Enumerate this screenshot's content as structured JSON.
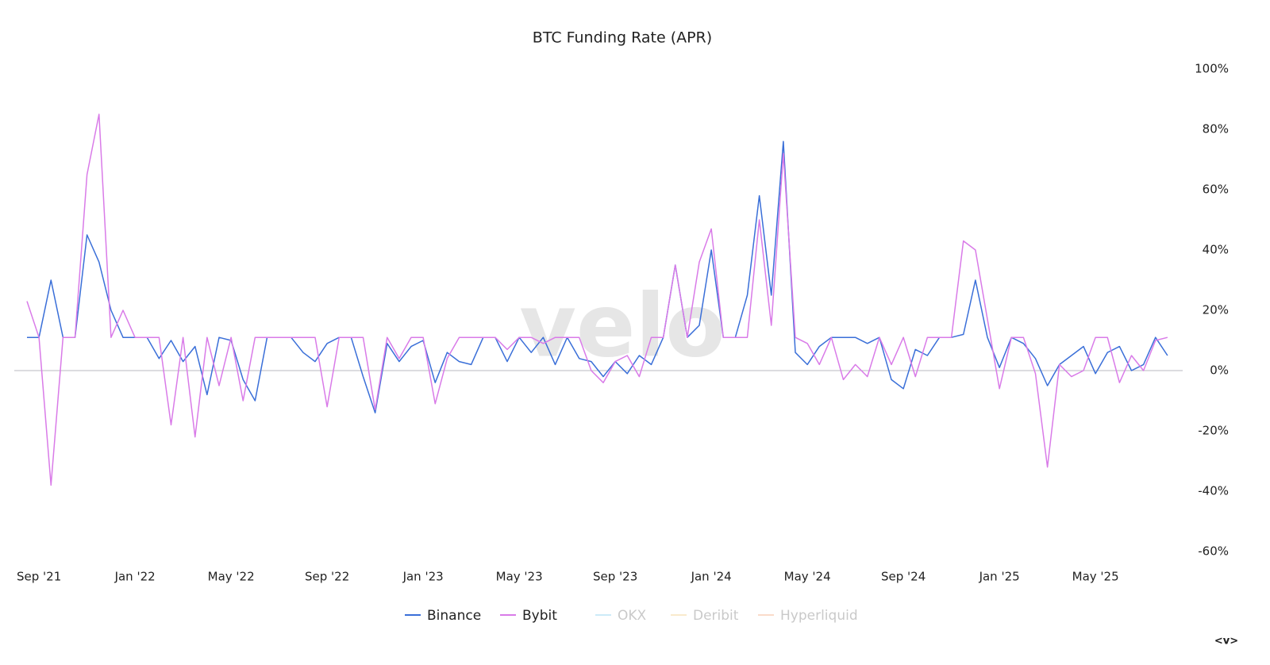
{
  "chart_data": {
    "type": "line",
    "title": "BTC Funding Rate (APR)",
    "watermark": "velo",
    "corner_label": "<v>",
    "categories": [
      null,
      "Sep '21",
      null,
      null,
      null,
      null,
      null,
      null,
      null,
      "Jan '22",
      null,
      null,
      null,
      null,
      null,
      null,
      null,
      "May '22",
      null,
      null,
      null,
      null,
      null,
      null,
      null,
      "Sep '22",
      null,
      null,
      null,
      null,
      null,
      null,
      null,
      "Jan '23",
      null,
      null,
      null,
      null,
      null,
      null,
      null,
      "May '23",
      null,
      null,
      null,
      null,
      null,
      null,
      null,
      "Sep '23",
      null,
      null,
      null,
      null,
      null,
      null,
      null,
      "Jan '24",
      null,
      null,
      null,
      null,
      null,
      null,
      null,
      "May '24",
      null,
      null,
      null,
      null,
      null,
      null,
      null,
      "Sep '24",
      null,
      null,
      null,
      null,
      null,
      null,
      null,
      "Jan '25",
      null,
      null,
      null,
      null,
      null,
      null,
      null,
      "May '25",
      null,
      null,
      null,
      null,
      null,
      null
    ],
    "series": [
      {
        "name": "Binance",
        "color": "#3a6fd8",
        "values": [
          11,
          11,
          30,
          11,
          11,
          45,
          36,
          20,
          11,
          11,
          11,
          4,
          10,
          3,
          8,
          -8,
          11,
          10,
          -3,
          -10,
          11,
          11,
          11,
          6,
          3,
          9,
          11,
          11,
          -2,
          -14,
          9,
          3,
          8,
          10,
          -4,
          6,
          3,
          2,
          11,
          11,
          3,
          11,
          6,
          11,
          2,
          11,
          4,
          3,
          -2,
          3,
          -1,
          5,
          2,
          11,
          35,
          11,
          15,
          40,
          11,
          11,
          25,
          58,
          25,
          76,
          6,
          2,
          8,
          11,
          11,
          11,
          9,
          11,
          -3,
          -6,
          7,
          5,
          11,
          11,
          12,
          30,
          11,
          1,
          11,
          9,
          4,
          -5,
          2,
          5,
          8,
          -1,
          6,
          8,
          0,
          2,
          11,
          5
        ]
      },
      {
        "name": "Bybit",
        "color": "#d97be8",
        "values": [
          23,
          11,
          -38,
          11,
          11,
          65,
          85,
          11,
          20,
          11,
          11,
          11,
          -18,
          11,
          -22,
          11,
          -5,
          11,
          -10,
          11,
          11,
          11,
          11,
          11,
          11,
          -12,
          11,
          11,
          11,
          -13,
          11,
          4,
          11,
          11,
          -11,
          4,
          11,
          11,
          11,
          11,
          7,
          11,
          11,
          9,
          11,
          11,
          11,
          0,
          -4,
          3,
          5,
          -2,
          11,
          11,
          35,
          11,
          36,
          47,
          11,
          11,
          11,
          50,
          15,
          72,
          11,
          9,
          2,
          11,
          -3,
          2,
          -2,
          11,
          2,
          11,
          -2,
          11,
          11,
          11,
          43,
          40,
          17,
          -6,
          11,
          11,
          -1,
          -32,
          2,
          -2,
          0,
          11,
          11,
          -4,
          5,
          0,
          10,
          11
        ]
      },
      {
        "name": "OKX",
        "color": "#8fd3f0",
        "hidden": true,
        "values": [
          null,
          null,
          null,
          null,
          null,
          null,
          null,
          null,
          null,
          null,
          null,
          null,
          null,
          null,
          null,
          null,
          null,
          null,
          null,
          null,
          null,
          null,
          null,
          null,
          null,
          null,
          null,
          null,
          null,
          null,
          null,
          null,
          null,
          null,
          null,
          null,
          null,
          null,
          null,
          null,
          null,
          null,
          null,
          null,
          null,
          null,
          null,
          null,
          null,
          null,
          null,
          null,
          null,
          null,
          null,
          null,
          null,
          null,
          null,
          null,
          null,
          null,
          null,
          null,
          null,
          null,
          null,
          null,
          null,
          null,
          null,
          null,
          null,
          null,
          null,
          null,
          null,
          null,
          null,
          null,
          null,
          null,
          null,
          null,
          null,
          null,
          null,
          null,
          null,
          null,
          null,
          null,
          null,
          null,
          null,
          null
        ]
      },
      {
        "name": "Deribit",
        "color": "#f3d28f",
        "hidden": true,
        "values": [
          null,
          null,
          null,
          null,
          null,
          null,
          null,
          null,
          null,
          null,
          null,
          null,
          null,
          null,
          null,
          null,
          null,
          null,
          null,
          null,
          null,
          null,
          null,
          null,
          null,
          null,
          null,
          null,
          null,
          null,
          null,
          null,
          null,
          null,
          null,
          null,
          null,
          null,
          null,
          null,
          null,
          null,
          null,
          null,
          null,
          null,
          null,
          null,
          null,
          null,
          null,
          null,
          null,
          null,
          null,
          null,
          null,
          null,
          null,
          null,
          null,
          null,
          null,
          null,
          null,
          null,
          null,
          null,
          null,
          null,
          null,
          null,
          null,
          null,
          null,
          null,
          null,
          null,
          null,
          null,
          null,
          null,
          null,
          null,
          null,
          null,
          null,
          null,
          null,
          null,
          null,
          null,
          null,
          null,
          null,
          null
        ]
      },
      {
        "name": "Hyperliquid",
        "color": "#f4b08c",
        "hidden": true,
        "values": [
          null,
          null,
          null,
          null,
          null,
          null,
          null,
          null,
          null,
          null,
          null,
          null,
          null,
          null,
          null,
          null,
          null,
          null,
          null,
          null,
          null,
          null,
          null,
          null,
          null,
          null,
          null,
          null,
          null,
          null,
          null,
          null,
          null,
          null,
          null,
          null,
          null,
          null,
          null,
          null,
          null,
          null,
          null,
          null,
          null,
          null,
          null,
          null,
          null,
          null,
          null,
          null,
          null,
          null,
          null,
          null,
          null,
          null,
          null,
          null,
          null,
          null,
          null,
          null,
          null,
          null,
          null,
          null,
          null,
          null,
          null,
          null,
          null,
          null,
          null,
          null,
          null,
          null,
          null,
          null,
          null,
          null,
          null,
          null,
          null,
          null,
          null,
          null,
          null,
          null,
          null,
          null,
          null,
          null,
          null,
          null
        ]
      }
    ],
    "ylim": [
      -60,
      100
    ],
    "yticks": [
      {
        "value": -60,
        "label": "-60%"
      },
      {
        "value": -40,
        "label": "-40%"
      },
      {
        "value": -20,
        "label": "-20%"
      },
      {
        "value": 0,
        "label": "0%"
      },
      {
        "value": 20,
        "label": "20%"
      },
      {
        "value": 40,
        "label": "40%"
      },
      {
        "value": 60,
        "label": "60%"
      },
      {
        "value": 80,
        "label": "80%"
      },
      {
        "value": 100,
        "label": "100%"
      }
    ]
  }
}
